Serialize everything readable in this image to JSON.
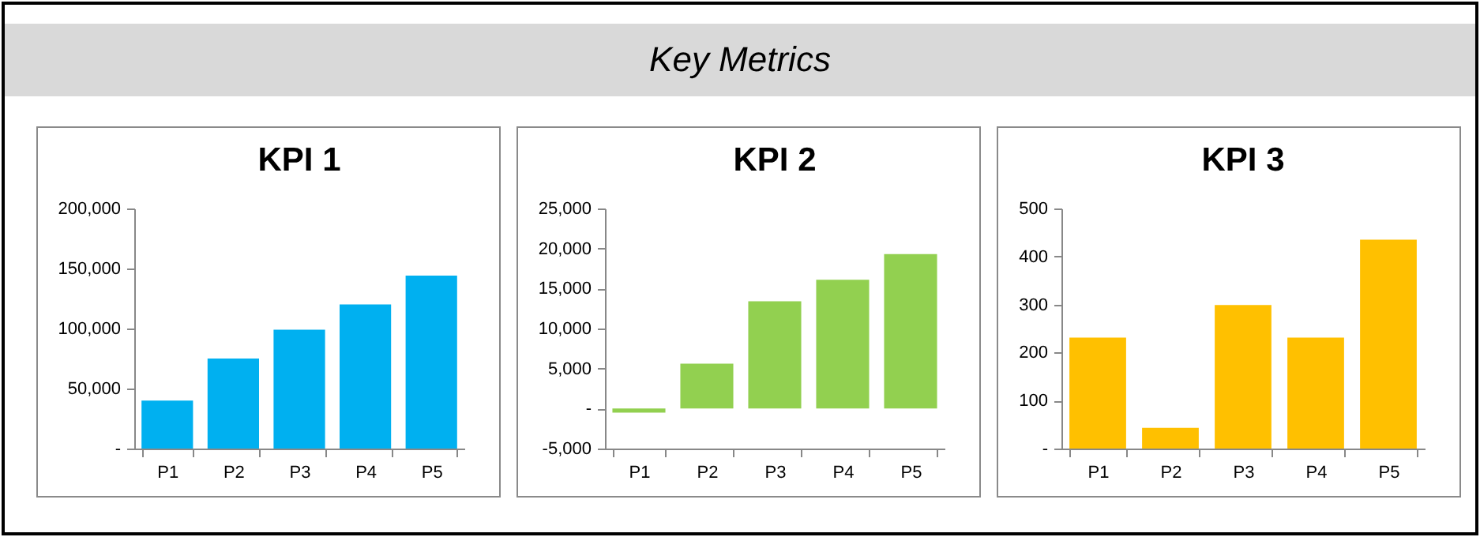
{
  "chart_data": [
    {
      "type": "other",
      "title": "Key Metrics"
    },
    {
      "type": "bar",
      "title": "KPI 1",
      "categories": [
        "P1",
        "P2",
        "P3",
        "P4",
        "P5"
      ],
      "values": [
        40000,
        75000,
        99000,
        120000,
        144000
      ],
      "color": "#00b0f0",
      "ylim": [
        0,
        200000
      ],
      "yticks": [
        {
          "value": 0,
          "label": "-"
        },
        {
          "value": 50000,
          "label": "50,000"
        },
        {
          "value": 100000,
          "label": "100,000"
        },
        {
          "value": 150000,
          "label": "150,000"
        },
        {
          "value": 200000,
          "label": "200,000"
        }
      ]
    },
    {
      "type": "bar",
      "title": "KPI 2",
      "categories": [
        "P1",
        "P2",
        "P3",
        "P4",
        "P5"
      ],
      "values": [
        -500,
        5600,
        13400,
        16100,
        19300
      ],
      "color": "#92d050",
      "ylim": [
        -5000,
        25000
      ],
      "yticks": [
        {
          "value": -5000,
          "label": "-5,000"
        },
        {
          "value": 0,
          "label": "-"
        },
        {
          "value": 5000,
          "label": "5,000"
        },
        {
          "value": 10000,
          "label": "10,000"
        },
        {
          "value": 15000,
          "label": "15,000"
        },
        {
          "value": 20000,
          "label": "20,000"
        },
        {
          "value": 25000,
          "label": "25,000"
        }
      ]
    },
    {
      "type": "bar",
      "title": "KPI 3",
      "categories": [
        "P1",
        "P2",
        "P3",
        "P4",
        "P5"
      ],
      "values": [
        231,
        43,
        299,
        231,
        435
      ],
      "color": "#ffc000",
      "ylim": [
        0,
        500
      ],
      "yticks": [
        {
          "value": 0,
          "label": "-"
        },
        100,
        200,
        300,
        400,
        500
      ]
    }
  ]
}
